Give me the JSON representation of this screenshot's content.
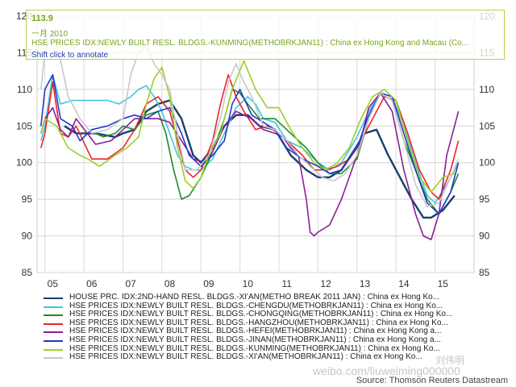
{
  "tooltip": {
    "value": "113.9",
    "date": "一月 2010",
    "series": "HSE PRICES IDX:NEWLY BUILT RESL. BLDGS.-KUNMING(METHOBRKJAN11) : China ex Hong Kong and Macau (Co...",
    "hint": "Shift click to annotate"
  },
  "legend": [
    {
      "label": "HOUSE PRC. IDX:2ND-HAND RESL. BLDGS.-XI'AN(METHO BREAK 2011 JAN) : China ex Hong Ko...",
      "color": "#17406d"
    },
    {
      "label": "HSE PRICES IDX:NEWLY BUILT RESL. BLDGS.-CHENGDU(METHOBRKJAN11) : China ex Hong Ko...",
      "color": "#3fc6e3"
    },
    {
      "label": "HSE PRICES IDX:NEWLY BUILT RESL. BLDGS.-CHONGQING(METHOBRKJAN11) : China ex Hong Ko...",
      "color": "#1e8a2e"
    },
    {
      "label": "HSE PRICES IDX:NEWLY BUILT RESL. BLDGS.-HANGZHOU(METHOBRKJAN11) : China ex Hong Ko...",
      "color": "#e8262a"
    },
    {
      "label": "HSE PRICES IDX:NEWLY BUILT RESL. BLDGS.-HEFEI(METHOBRKJAN11) : China ex Hong Kong a...",
      "color": "#8a1f92"
    },
    {
      "label": "HSE PRICES IDX:NEWLY BUILT RESL. BLDGS.-JINAN(METHOBRKJAN11) : China ex Hong Kong a...",
      "color": "#2438c8"
    },
    {
      "label": "HSE PRICES IDX:NEWLY BUILT RESL. BLDGS.-KUNMING(METHOBRKJAN11) : China ex Hong Ko...",
      "color": "#9ccf2a"
    },
    {
      "label": "HSE PRICES IDX:NEWLY BUILT RESL. BLDGS.-XI'AN(METHOBRKJAN11) : China ex Hong Ko...",
      "color": "#c8c8c8"
    }
  ],
  "source": "Source: Thomson Reuters Datastream",
  "watermark": {
    "line1": "刘伟明",
    "line2": "weibo.com/liuweiming000000"
  },
  "chart_data": {
    "type": "line",
    "title": "",
    "xlabel": "",
    "ylabel": "",
    "ylim": [
      85,
      120
    ],
    "yticks": [
      85,
      90,
      95,
      100,
      105,
      110,
      115,
      120
    ],
    "xlim": [
      2004.8,
      2016.0
    ],
    "xticks": [
      {
        "label": "05",
        "x": 2005.2
      },
      {
        "label": "06",
        "x": 2006.2
      },
      {
        "label": "07",
        "x": 2007.2
      },
      {
        "label": "08",
        "x": 2008.2
      },
      {
        "label": "09",
        "x": 2009.2
      },
      {
        "label": "10",
        "x": 2010.2
      },
      {
        "label": "11",
        "x": 2011.2
      },
      {
        "label": "12",
        "x": 2012.2
      },
      {
        "label": "13",
        "x": 2013.2
      },
      {
        "label": "14",
        "x": 2014.2
      },
      {
        "label": "15",
        "x": 2015.2
      }
    ],
    "grid": true,
    "series": [
      {
        "name": "HOUSE PRC. IDX:2ND-HAND RESL. BLDGS.-XI'AN(METHO BREAK 2011 JAN) : China ex Hong Ko...",
        "color": "#17406d",
        "x": [
          2005.5,
          2005.8,
          2006.3,
          2006.8,
          2007.0,
          2007.3,
          2007.6,
          2007.9,
          2008.2,
          2008.5,
          2008.8,
          2009.0,
          2009.3,
          2009.6,
          2009.9,
          2010.2,
          2010.5,
          2010.9,
          2011.3,
          2011.7,
          2012.0,
          2012.3,
          2012.6,
          2012.9,
          2013.2,
          2013.5,
          2013.8,
          2014.1,
          2014.4,
          2014.7,
          2014.9,
          2015.2,
          2015.5
        ],
        "y": [
          105,
          104,
          104,
          103.5,
          104,
          104.5,
          107,
          108,
          108.5,
          106,
          101,
          100,
          102,
          105,
          106.5,
          106.5,
          105,
          104.5,
          101,
          99,
          98,
          98,
          99,
          101.5,
          104,
          104.5,
          101,
          98,
          95,
          92.5,
          92.5,
          93.5,
          95.5
        ]
      },
      {
        "name": "HSE PRICES IDX:NEWLY BUILT RESL. BLDGS.-CHENGDU(METHOBRKJAN11) : China ex Hong Ko...",
        "color": "#3fc6e3",
        "x": [
          2004.9,
          2005.0,
          2005.2,
          2005.4,
          2005.7,
          2006.0,
          2006.3,
          2006.6,
          2006.9,
          2007.2,
          2007.4,
          2007.6,
          2007.8,
          2008.0,
          2008.2,
          2008.4,
          2008.6,
          2008.8,
          2009.0,
          2009.3,
          2009.6,
          2009.9,
          2010.2,
          2010.4,
          2010.6,
          2010.9,
          2011.2,
          2011.6,
          2012.0,
          2012.3,
          2012.6,
          2013.0,
          2013.3,
          2013.6,
          2013.9,
          2014.2,
          2014.5,
          2014.8,
          2015.0,
          2015.3,
          2015.6
        ],
        "y": [
          103,
          105,
          112,
          108,
          108.5,
          108.5,
          108.5,
          108.5,
          108,
          109,
          110,
          110.5,
          109,
          107,
          104,
          101,
          99.5,
          99,
          99,
          100.5,
          104,
          107.5,
          109,
          108,
          106,
          105.5,
          103,
          102,
          100,
          99,
          100,
          103.5,
          107,
          109.5,
          109,
          105,
          100,
          95.5,
          94.5,
          97,
          100
        ]
      },
      {
        "name": "HSE PRICES IDX:NEWLY BUILT RESL. BLDGS.-CHONGQING(METHOBRKJAN11) : China ex Hong Ko...",
        "color": "#1e8a2e",
        "x": [
          2006.3,
          2006.5,
          2006.8,
          2007.0,
          2007.3,
          2007.6,
          2007.9,
          2008.1,
          2008.3,
          2008.5,
          2008.7,
          2009.0,
          2009.3,
          2009.6,
          2009.8,
          2010.0,
          2010.2,
          2010.5,
          2010.9,
          2011.3,
          2011.7,
          2012.0,
          2012.3,
          2012.6,
          2013.0,
          2013.3,
          2013.6,
          2013.9,
          2014.2,
          2014.5,
          2014.8,
          2015.1,
          2015.4,
          2015.6
        ],
        "y": [
          104,
          103.5,
          104,
          105,
          104.5,
          106.5,
          107,
          104,
          99,
          95,
          95.5,
          98,
          101.5,
          106,
          110,
          109.5,
          108,
          106,
          106,
          104,
          102,
          100,
          98.5,
          98.5,
          100.5,
          106,
          109.5,
          108.5,
          103,
          99,
          95,
          93,
          96,
          98.5
        ]
      },
      {
        "name": "HSE PRICES IDX:NEWLY BUILT RESL. BLDGS.-HANGZHOU(METHOBRKJAN11) : China ex Hong Ko...",
        "color": "#e8262a",
        "x": [
          2004.9,
          2005.0,
          2005.2,
          2005.4,
          2005.6,
          2005.8,
          2006.2,
          2006.6,
          2007.0,
          2007.3,
          2007.6,
          2007.9,
          2008.2,
          2008.4,
          2008.6,
          2008.8,
          2009.0,
          2009.3,
          2009.5,
          2009.7,
          2009.9,
          2010.1,
          2010.4,
          2010.7,
          2011.0,
          2011.3,
          2011.6,
          2011.9,
          2012.2,
          2012.5,
          2012.8,
          2013.1,
          2013.4,
          2013.7,
          2014.0,
          2014.3,
          2014.6,
          2014.9,
          2015.1,
          2015.4,
          2015.6
        ],
        "y": [
          102,
          104,
          111,
          104,
          103.5,
          105,
          100.5,
          100.5,
          102,
          104.5,
          108,
          109,
          107,
          103,
          99,
          98,
          99,
          103,
          108,
          112,
          109,
          107,
          104.5,
          105,
          104,
          102.5,
          101,
          99,
          99,
          99.5,
          100.5,
          103,
          106,
          109,
          108.5,
          104,
          99,
          96,
          95,
          99,
          103
        ]
      },
      {
        "name": "HSE PRICES IDX:NEWLY BUILT RESL. BLDGS.-HEFEI(METHOBRKJAN11) : China ex Hong Kong a...",
        "color": "#8a1f92",
        "x": [
          2004.9,
          2005.0,
          2005.2,
          2005.4,
          2005.6,
          2005.8,
          2006.3,
          2006.7,
          2007.0,
          2007.3,
          2007.6,
          2007.9,
          2008.2,
          2008.5,
          2008.8,
          2009.1,
          2009.3,
          2009.6,
          2009.9,
          2010.1,
          2010.3,
          2010.6,
          2010.9,
          2011.1,
          2011.3,
          2011.5,
          2011.7,
          2011.8,
          2011.9,
          2012.0,
          2012.3,
          2012.6,
          2013.0,
          2013.3,
          2013.6,
          2013.9,
          2014.2,
          2014.5,
          2014.7,
          2014.9,
          2015.1,
          2015.3,
          2015.6
        ],
        "y": [
          104,
          106,
          107.5,
          104.5,
          103.5,
          106,
          102.5,
          103,
          104.5,
          106,
          106,
          106,
          105.5,
          103,
          100.5,
          100,
          101.5,
          105,
          107,
          106.5,
          106,
          104.5,
          104,
          103.5,
          102,
          101,
          95,
          90.5,
          90,
          90.5,
          91.5,
          95,
          101,
          107.5,
          109.5,
          107,
          99,
          93,
          90,
          89.5,
          93,
          101,
          107
        ]
      },
      {
        "name": "HSE PRICES IDX:NEWLY BUILT RESL. BLDGS.-JINAN(METHOBRKJAN11) : China ex Hong Kong a...",
        "color": "#2438c8",
        "x": [
          2004.9,
          2005.0,
          2005.2,
          2005.4,
          2005.7,
          2005.9,
          2006.2,
          2006.6,
          2007.0,
          2007.3,
          2007.6,
          2007.9,
          2008.2,
          2008.5,
          2008.7,
          2009.0,
          2009.3,
          2009.6,
          2009.8,
          2010.0,
          2010.3,
          2010.6,
          2010.9,
          2011.2,
          2011.6,
          2012.0,
          2012.3,
          2012.6,
          2013.0,
          2013.3,
          2013.6,
          2013.9,
          2014.2,
          2014.5,
          2014.8,
          2015.1,
          2015.4,
          2015.6
        ],
        "y": [
          105,
          110,
          112,
          106,
          105,
          103,
          104.5,
          105,
          106,
          106.5,
          106,
          107,
          107.5,
          104,
          101,
          99.5,
          101,
          103,
          108,
          110,
          106.5,
          105.5,
          104.5,
          102,
          100.5,
          99.5,
          98.5,
          99,
          102,
          106.5,
          109.5,
          109,
          104,
          99,
          94.5,
          93,
          96,
          100
        ]
      },
      {
        "name": "HSE PRICES IDX:NEWLY BUILT RESL. BLDGS.-KUNMING(METHOBRKJAN11) : China ex Hong Ko...",
        "color": "#9ccf2a",
        "x": [
          2004.9,
          2005.0,
          2005.3,
          2005.6,
          2005.9,
          2006.1,
          2006.4,
          2006.8,
          2007.1,
          2007.4,
          2007.6,
          2007.8,
          2008.0,
          2008.2,
          2008.4,
          2008.6,
          2008.8,
          2009.0,
          2009.2,
          2009.5,
          2009.8,
          2010.1,
          2010.4,
          2010.7,
          2011.0,
          2011.3,
          2011.6,
          2011.9,
          2012.2,
          2012.5,
          2012.8,
          2013.1,
          2013.4,
          2013.7,
          2014.0,
          2014.3,
          2014.6,
          2014.9,
          2015.2,
          2015.5
        ],
        "y": [
          104,
          106,
          105,
          102,
          101,
          100.5,
          99.5,
          101,
          102,
          103.5,
          108,
          111.5,
          113,
          109,
          102,
          97.5,
          96.5,
          98,
          101,
          104,
          110,
          113.9,
          110,
          107.5,
          107.5,
          104.5,
          102,
          100,
          99,
          100,
          102,
          106,
          109,
          110,
          108.5,
          103,
          98,
          96,
          98,
          98.5
        ]
      },
      {
        "name": "HSE PRICES IDX:NEWLY BUILT RESL. BLDGS.-XI'AN(METHOBRKJAN11) : China ex Hong Ko...",
        "color": "#c8c8c8",
        "x": [
          2004.9,
          2005.0,
          2005.2,
          2005.4,
          2005.6,
          2005.9,
          2006.2,
          2006.6,
          2007.0,
          2007.2,
          2007.4,
          2007.6,
          2007.8,
          2008.0,
          2008.2,
          2008.4,
          2008.6,
          2008.9,
          2009.2,
          2009.5,
          2009.7,
          2009.9,
          2010.1,
          2010.3,
          2010.6,
          2010.9,
          2011.2,
          2011.5,
          2011.8,
          2012.1,
          2012.4,
          2012.7,
          2013.0,
          2013.3,
          2013.6,
          2013.9,
          2014.2,
          2014.5,
          2014.8,
          2015.1,
          2015.4,
          2015.6
        ],
        "y": [
          110,
          115,
          118,
          114,
          109,
          106,
          104,
          104.5,
          106,
          112,
          115,
          116,
          113.5,
          112,
          110,
          104,
          99,
          99,
          101,
          106,
          111,
          113.5,
          111,
          109,
          105,
          104.5,
          103,
          101,
          99.5,
          98,
          97.5,
          98.5,
          101,
          106,
          109.5,
          108.5,
          103,
          97,
          94,
          94.5,
          98,
          100.5
        ]
      }
    ]
  }
}
